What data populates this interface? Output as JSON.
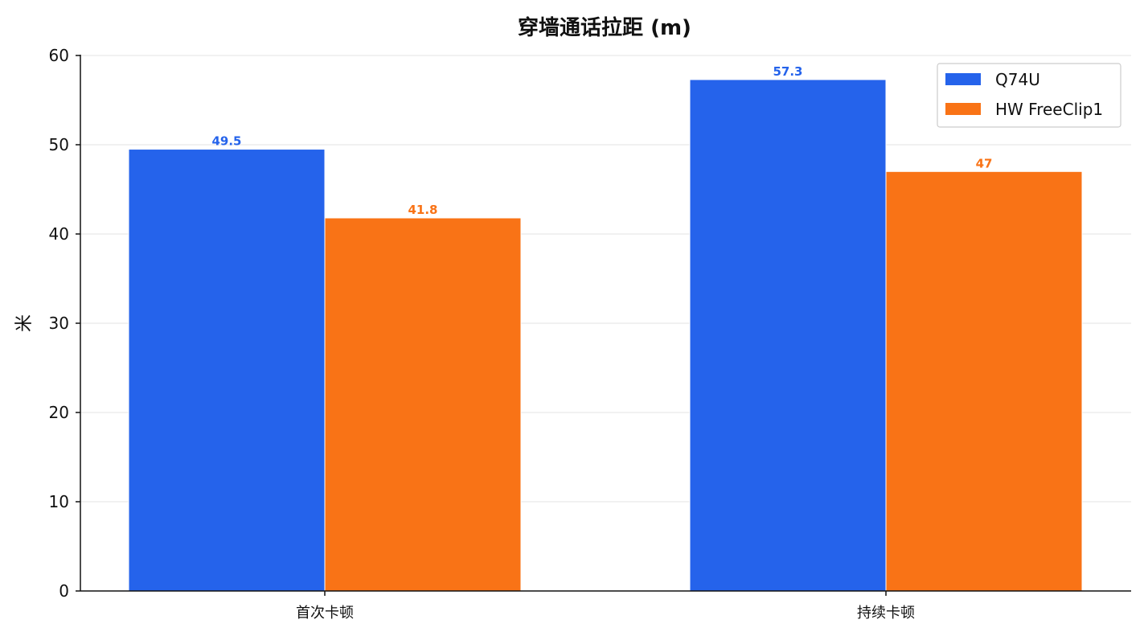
{
  "chart_data": {
    "type": "bar",
    "title": "穿墙通话拉距 (m)",
    "xlabel": "",
    "ylabel": "米",
    "categories": [
      "首次卡顿",
      "持续卡顿"
    ],
    "series": [
      {
        "name": "Q74U",
        "values": [
          49.5,
          57.3
        ],
        "labels": [
          "49.5",
          "57.3"
        ],
        "color": "#2563eb"
      },
      {
        "name": "HW FreeClip1",
        "values": [
          41.8,
          47.0
        ],
        "labels": [
          "41.8",
          "47"
        ],
        "color": "#f97316"
      }
    ],
    "ylim": [
      0,
      60
    ],
    "yticks": [
      0,
      10,
      20,
      30,
      40,
      50,
      60
    ],
    "grid": "horizontal",
    "legend_position": "top-right"
  }
}
